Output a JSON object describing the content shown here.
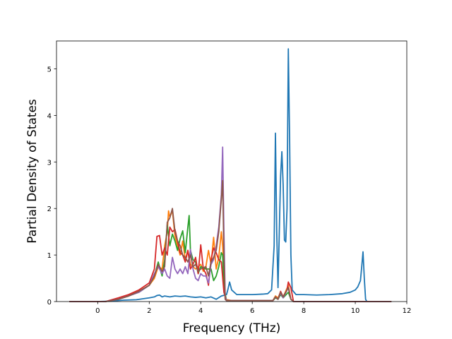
{
  "chart_data": {
    "type": "line",
    "title": "",
    "xlabel": "Frequency (THz)",
    "ylabel": "Partial Density of States",
    "xlim": [
      -1.6,
      12.0
    ],
    "ylim": [
      0,
      5.6
    ],
    "xticks": [
      0,
      2,
      4,
      6,
      8,
      10,
      12
    ],
    "yticks": [
      0,
      1,
      2,
      3,
      4,
      5
    ],
    "grid": false,
    "legend": "none",
    "series": [
      {
        "color": "#1f77b4",
        "points": [
          [
            -1.1,
            0
          ],
          [
            0,
            0
          ],
          [
            0.5,
            0.01
          ],
          [
            1,
            0.03
          ],
          [
            1.5,
            0.04
          ],
          [
            2,
            0.08
          ],
          [
            2.2,
            0.1
          ],
          [
            2.3,
            0.13
          ],
          [
            2.4,
            0.14
          ],
          [
            2.5,
            0.1
          ],
          [
            2.6,
            0.12
          ],
          [
            2.8,
            0.1
          ],
          [
            3.0,
            0.12
          ],
          [
            3.2,
            0.11
          ],
          [
            3.4,
            0.12
          ],
          [
            3.6,
            0.1
          ],
          [
            3.8,
            0.09
          ],
          [
            4.0,
            0.1
          ],
          [
            4.2,
            0.08
          ],
          [
            4.4,
            0.1
          ],
          [
            4.6,
            0.05
          ],
          [
            4.8,
            0.12
          ],
          [
            5.0,
            0.15
          ],
          [
            5.05,
            0.25
          ],
          [
            5.12,
            0.42
          ],
          [
            5.2,
            0.25
          ],
          [
            5.4,
            0.15
          ],
          [
            5.6,
            0.15
          ],
          [
            6.0,
            0.15
          ],
          [
            6.4,
            0.16
          ],
          [
            6.6,
            0.17
          ],
          [
            6.75,
            0.25
          ],
          [
            6.85,
            1.2
          ],
          [
            6.9,
            3.62
          ],
          [
            6.95,
            1.5
          ],
          [
            7.0,
            0.3
          ],
          [
            7.05,
            1.5
          ],
          [
            7.1,
            2.7
          ],
          [
            7.15,
            3.22
          ],
          [
            7.2,
            2.5
          ],
          [
            7.25,
            1.32
          ],
          [
            7.3,
            1.28
          ],
          [
            7.35,
            2.0
          ],
          [
            7.4,
            5.43
          ],
          [
            7.45,
            3.5
          ],
          [
            7.5,
            1.0
          ],
          [
            7.55,
            0.25
          ],
          [
            7.7,
            0.15
          ],
          [
            8.0,
            0.15
          ],
          [
            8.5,
            0.14
          ],
          [
            9.0,
            0.15
          ],
          [
            9.5,
            0.17
          ],
          [
            9.8,
            0.2
          ],
          [
            10.0,
            0.25
          ],
          [
            10.1,
            0.32
          ],
          [
            10.2,
            0.45
          ],
          [
            10.25,
            0.75
          ],
          [
            10.3,
            1.07
          ],
          [
            10.35,
            0.5
          ],
          [
            10.4,
            0.05
          ],
          [
            10.45,
            0
          ],
          [
            11.4,
            0
          ]
        ]
      },
      {
        "color": "#ff7f0e",
        "points": [
          [
            -1.1,
            0
          ],
          [
            0.3,
            0
          ],
          [
            0.8,
            0.05
          ],
          [
            1.2,
            0.12
          ],
          [
            1.6,
            0.22
          ],
          [
            2.0,
            0.35
          ],
          [
            2.2,
            0.5
          ],
          [
            2.35,
            0.75
          ],
          [
            2.5,
            0.7
          ],
          [
            2.6,
            1.2
          ],
          [
            2.7,
            1.5
          ],
          [
            2.75,
            1.95
          ],
          [
            2.8,
            1.82
          ],
          [
            2.9,
            1.95
          ],
          [
            3.0,
            1.4
          ],
          [
            3.1,
            1.2
          ],
          [
            3.2,
            1.0
          ],
          [
            3.3,
            1.3
          ],
          [
            3.4,
            0.9
          ],
          [
            3.5,
            1.1
          ],
          [
            3.6,
            0.8
          ],
          [
            3.8,
            0.7
          ],
          [
            4.0,
            0.8
          ],
          [
            4.1,
            0.65
          ],
          [
            4.2,
            0.75
          ],
          [
            4.3,
            1.1
          ],
          [
            4.4,
            0.8
          ],
          [
            4.5,
            1.38
          ],
          [
            4.6,
            0.7
          ],
          [
            4.7,
            0.95
          ],
          [
            4.8,
            1.5
          ],
          [
            4.85,
            1.2
          ],
          [
            4.95,
            0.05
          ],
          [
            5.2,
            0.02
          ],
          [
            6.0,
            0.02
          ],
          [
            6.8,
            0.02
          ],
          [
            6.9,
            0.12
          ],
          [
            7.0,
            0.08
          ],
          [
            7.1,
            0.2
          ],
          [
            7.2,
            0.1
          ],
          [
            7.4,
            0.35
          ],
          [
            7.5,
            0.05
          ],
          [
            7.6,
            0
          ],
          [
            11.4,
            0
          ]
        ]
      },
      {
        "color": "#2ca02c",
        "points": [
          [
            -1.1,
            0
          ],
          [
            0.3,
            0
          ],
          [
            0.8,
            0.05
          ],
          [
            1.2,
            0.12
          ],
          [
            1.6,
            0.2
          ],
          [
            2.0,
            0.35
          ],
          [
            2.2,
            0.55
          ],
          [
            2.35,
            0.85
          ],
          [
            2.5,
            0.55
          ],
          [
            2.6,
            0.9
          ],
          [
            2.7,
            1.65
          ],
          [
            2.8,
            1.2
          ],
          [
            2.9,
            1.45
          ],
          [
            3.0,
            1.3
          ],
          [
            3.1,
            1.1
          ],
          [
            3.2,
            1.35
          ],
          [
            3.3,
            1.52
          ],
          [
            3.4,
            1.05
          ],
          [
            3.5,
            1.6
          ],
          [
            3.55,
            1.85
          ],
          [
            3.6,
            1.1
          ],
          [
            3.7,
            0.9
          ],
          [
            3.8,
            0.85
          ],
          [
            3.9,
            0.6
          ],
          [
            4.0,
            0.75
          ],
          [
            4.2,
            0.7
          ],
          [
            4.4,
            0.7
          ],
          [
            4.5,
            0.45
          ],
          [
            4.6,
            0.55
          ],
          [
            4.7,
            0.75
          ],
          [
            4.8,
            1.05
          ],
          [
            4.85,
            1.0
          ],
          [
            4.9,
            0.3
          ],
          [
            5.0,
            0.02
          ],
          [
            6.0,
            0.02
          ],
          [
            6.8,
            0.02
          ],
          [
            6.9,
            0.08
          ],
          [
            7.0,
            0.05
          ],
          [
            7.1,
            0.15
          ],
          [
            7.2,
            0.08
          ],
          [
            7.4,
            0.2
          ],
          [
            7.5,
            0.05
          ],
          [
            7.6,
            0
          ],
          [
            11.4,
            0
          ]
        ]
      },
      {
        "color": "#d62728",
        "points": [
          [
            -1.1,
            0
          ],
          [
            0.3,
            0
          ],
          [
            0.8,
            0.08
          ],
          [
            1.2,
            0.15
          ],
          [
            1.6,
            0.25
          ],
          [
            2.0,
            0.4
          ],
          [
            2.2,
            0.7
          ],
          [
            2.3,
            1.4
          ],
          [
            2.4,
            1.42
          ],
          [
            2.5,
            1.0
          ],
          [
            2.6,
            1.15
          ],
          [
            2.7,
            1.0
          ],
          [
            2.8,
            1.6
          ],
          [
            2.9,
            1.5
          ],
          [
            3.0,
            1.55
          ],
          [
            3.1,
            1.3
          ],
          [
            3.2,
            1.05
          ],
          [
            3.3,
            1.0
          ],
          [
            3.4,
            0.85
          ],
          [
            3.5,
            1.1
          ],
          [
            3.6,
            0.7
          ],
          [
            3.7,
            0.8
          ],
          [
            3.8,
            0.95
          ],
          [
            3.9,
            0.6
          ],
          [
            4.0,
            1.22
          ],
          [
            4.1,
            0.7
          ],
          [
            4.2,
            0.6
          ],
          [
            4.3,
            0.35
          ],
          [
            4.4,
            0.9
          ],
          [
            4.5,
            1.15
          ],
          [
            4.6,
            1.05
          ],
          [
            4.7,
            0.9
          ],
          [
            4.8,
            0.85
          ],
          [
            4.9,
            0.2
          ],
          [
            5.0,
            0.02
          ],
          [
            6.0,
            0.02
          ],
          [
            6.8,
            0.02
          ],
          [
            6.9,
            0.1
          ],
          [
            7.0,
            0.05
          ],
          [
            7.1,
            0.22
          ],
          [
            7.2,
            0.1
          ],
          [
            7.35,
            0.25
          ],
          [
            7.4,
            0.42
          ],
          [
            7.5,
            0.3
          ],
          [
            7.6,
            0
          ],
          [
            11.4,
            0
          ]
        ]
      },
      {
        "color": "#9467bd",
        "points": [
          [
            -1.1,
            0
          ],
          [
            0.3,
            0
          ],
          [
            0.8,
            0.05
          ],
          [
            1.2,
            0.12
          ],
          [
            1.6,
            0.2
          ],
          [
            2.0,
            0.35
          ],
          [
            2.2,
            0.6
          ],
          [
            2.35,
            0.75
          ],
          [
            2.5,
            0.6
          ],
          [
            2.6,
            0.7
          ],
          [
            2.7,
            0.55
          ],
          [
            2.8,
            0.5
          ],
          [
            2.9,
            0.95
          ],
          [
            3.0,
            0.7
          ],
          [
            3.1,
            0.6
          ],
          [
            3.2,
            0.7
          ],
          [
            3.3,
            0.6
          ],
          [
            3.4,
            0.75
          ],
          [
            3.5,
            0.6
          ],
          [
            3.6,
            1.12
          ],
          [
            3.7,
            0.7
          ],
          [
            3.8,
            0.5
          ],
          [
            3.9,
            0.45
          ],
          [
            4.0,
            0.6
          ],
          [
            4.1,
            0.55
          ],
          [
            4.2,
            0.55
          ],
          [
            4.3,
            0.4
          ],
          [
            4.4,
            0.8
          ],
          [
            4.5,
            0.9
          ],
          [
            4.6,
            1.2
          ],
          [
            4.7,
            1.6
          ],
          [
            4.8,
            2.3
          ],
          [
            4.85,
            3.32
          ],
          [
            4.9,
            1.5
          ],
          [
            4.95,
            0.1
          ],
          [
            5.0,
            0.02
          ],
          [
            6.0,
            0.02
          ],
          [
            6.8,
            0.02
          ],
          [
            6.9,
            0.1
          ],
          [
            7.0,
            0.05
          ],
          [
            7.1,
            0.18
          ],
          [
            7.2,
            0.08
          ],
          [
            7.4,
            0.3
          ],
          [
            7.5,
            0.05
          ],
          [
            7.6,
            0
          ],
          [
            11.4,
            0
          ]
        ]
      },
      {
        "color": "#8c564b",
        "points": [
          [
            -1.1,
            0
          ],
          [
            0.3,
            0
          ],
          [
            0.8,
            0.05
          ],
          [
            1.2,
            0.12
          ],
          [
            1.6,
            0.22
          ],
          [
            2.0,
            0.35
          ],
          [
            2.2,
            0.55
          ],
          [
            2.35,
            0.8
          ],
          [
            2.5,
            0.65
          ],
          [
            2.6,
            0.75
          ],
          [
            2.7,
            1.7
          ],
          [
            2.8,
            1.8
          ],
          [
            2.9,
            2.0
          ],
          [
            3.0,
            1.5
          ],
          [
            3.1,
            1.3
          ],
          [
            3.2,
            1.2
          ],
          [
            3.3,
            1.0
          ],
          [
            3.4,
            0.95
          ],
          [
            3.5,
            0.85
          ],
          [
            3.6,
            1.0
          ],
          [
            3.7,
            0.75
          ],
          [
            3.8,
            0.8
          ],
          [
            3.9,
            0.65
          ],
          [
            4.0,
            0.7
          ],
          [
            4.2,
            0.75
          ],
          [
            4.3,
            0.55
          ],
          [
            4.4,
            0.85
          ],
          [
            4.5,
            0.95
          ],
          [
            4.6,
            1.1
          ],
          [
            4.7,
            1.5
          ],
          [
            4.8,
            2.2
          ],
          [
            4.85,
            2.6
          ],
          [
            4.9,
            1.0
          ],
          [
            4.95,
            0.05
          ],
          [
            5.0,
            0.02
          ],
          [
            6.0,
            0.02
          ],
          [
            6.8,
            0.02
          ],
          [
            6.9,
            0.1
          ],
          [
            7.0,
            0.05
          ],
          [
            7.1,
            0.2
          ],
          [
            7.2,
            0.1
          ],
          [
            7.4,
            0.3
          ],
          [
            7.5,
            0.05
          ],
          [
            7.6,
            0
          ],
          [
            11.4,
            0
          ]
        ]
      }
    ]
  }
}
